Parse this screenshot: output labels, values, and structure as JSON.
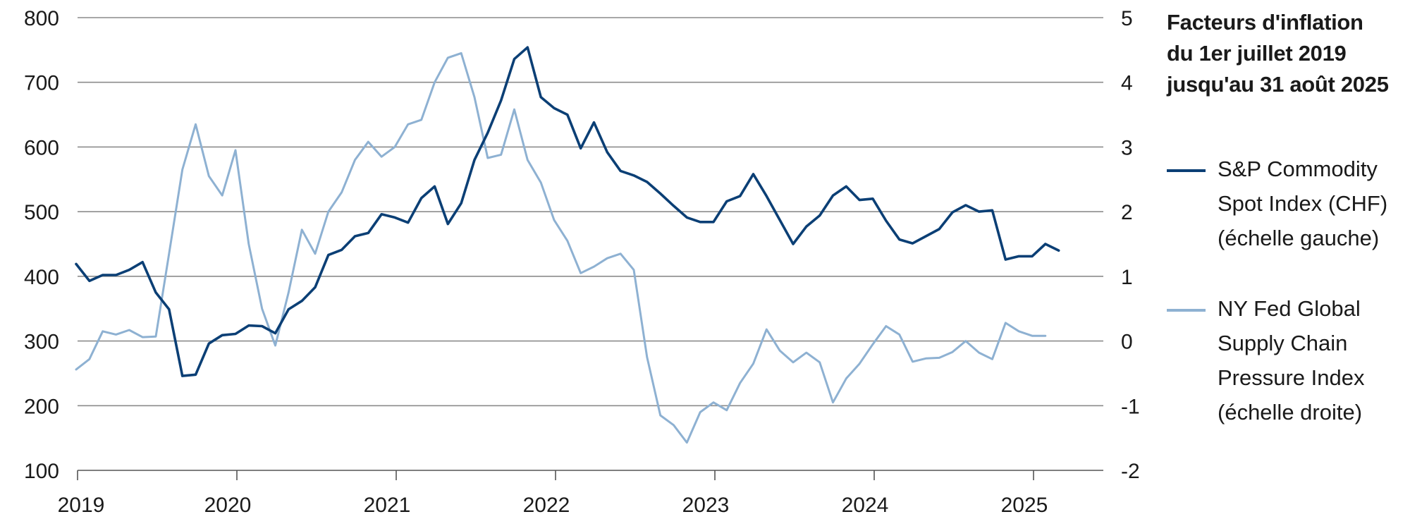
{
  "title_lines": [
    "Facteurs d'inflation",
    "du 1er juillet 2019",
    "jusqu'au 31 août 2025"
  ],
  "colors": {
    "sp": "#0b3f75",
    "ny": "#8eb1d2",
    "grid": "#8c8c8c",
    "axis": "#555555"
  },
  "legend": [
    {
      "lines": [
        "S&P Commodity",
        "Spot Index (CHF)",
        "(échelle gauche)"
      ]
    },
    {
      "lines": [
        "NY Fed Global",
        "Supply Chain",
        "Pressure Index",
        "(échelle droite)"
      ]
    }
  ],
  "chart_data": {
    "type": "line",
    "x_ticks": [
      "2019",
      "2020",
      "2021",
      "2022",
      "2023",
      "2024",
      "2025"
    ],
    "x_start": "2019-07",
    "left_axis": {
      "ylim": [
        100,
        800
      ],
      "ticks": [
        "100",
        "200",
        "300",
        "400",
        "500",
        "600",
        "700",
        "800"
      ]
    },
    "right_axis": {
      "ylim": [
        -2,
        5
      ],
      "ticks": [
        "-2",
        "-1",
        "0",
        "1",
        "2",
        "3",
        "4",
        "5"
      ]
    },
    "grid": true,
    "series": [
      {
        "name": "S&P Commodity Spot Index (CHF) (échelle gauche)",
        "axis": "left",
        "values": [
          419,
          393,
          402,
          402,
          410,
          422,
          375,
          349,
          246,
          248,
          296,
          309,
          311,
          324,
          323,
          312,
          349,
          362,
          383,
          433,
          441,
          462,
          467,
          496,
          491,
          483,
          521,
          539,
          481,
          513,
          580,
          622,
          672,
          736,
          754,
          677,
          660,
          650,
          598,
          638,
          592,
          563,
          556,
          546,
          528,
          509,
          491,
          484,
          484,
          516,
          524,
          558,
          524,
          487,
          450,
          477,
          494,
          525,
          539,
          518,
          520,
          486,
          457,
          451,
          462,
          473,
          499,
          510,
          500,
          502,
          426,
          431,
          431,
          450,
          440
        ],
        "x": [
          "2019-07",
          "2019-08",
          "2019-09",
          "2019-10",
          "2019-11",
          "2019-12",
          "2020-01",
          "2020-02",
          "2020-03",
          "2020-04",
          "2020-05",
          "2020-06",
          "2020-07",
          "2020-08",
          "2020-09",
          "2020-10",
          "2020-11",
          "2020-12",
          "2021-01",
          "2021-02",
          "2021-03",
          "2021-04",
          "2021-05",
          "2021-06",
          "2021-07",
          "2021-08",
          "2021-09",
          "2021-10",
          "2021-11",
          "2021-12",
          "2022-01",
          "2022-02",
          "2022-03",
          "2022-04",
          "2022-05",
          "2022-06",
          "2022-07",
          "2022-08",
          "2022-09",
          "2022-10",
          "2022-11",
          "2022-12",
          "2023-01",
          "2023-02",
          "2023-03",
          "2023-04",
          "2023-05",
          "2023-06",
          "2023-07",
          "2023-08",
          "2023-09",
          "2023-10",
          "2023-11",
          "2023-12",
          "2024-01",
          "2024-02",
          "2024-03",
          "2024-04",
          "2024-05",
          "2024-06",
          "2024-07",
          "2024-08",
          "2024-09",
          "2024-10",
          "2024-11",
          "2024-12",
          "2025-01",
          "2025-02",
          "2025-03",
          "2025-04",
          "2025-05",
          "2025-06",
          "2025-07",
          "2025-08",
          "2025-09"
        ]
      },
      {
        "name": "NY Fed Global Supply Chain Pressure Index (échelle droite)",
        "axis": "right",
        "values": [
          -0.44,
          -0.28,
          0.15,
          0.1,
          0.17,
          0.06,
          0.07,
          1.35,
          2.65,
          3.35,
          2.55,
          2.25,
          2.95,
          1.5,
          0.5,
          -0.07,
          0.75,
          1.72,
          1.35,
          2.0,
          2.3,
          2.8,
          3.08,
          2.85,
          3.0,
          3.35,
          3.42,
          4.0,
          4.38,
          4.45,
          3.77,
          2.83,
          2.88,
          3.58,
          2.8,
          2.45,
          1.87,
          1.55,
          1.05,
          1.15,
          1.28,
          1.35,
          1.1,
          -0.25,
          -1.15,
          -1.3,
          -1.57,
          -1.1,
          -0.95,
          -1.07,
          -0.65,
          -0.35,
          0.18,
          -0.15,
          -0.33,
          -0.18,
          -0.33,
          -0.95,
          -0.58,
          -0.35,
          -0.05,
          0.23,
          0.1,
          -0.32,
          -0.27,
          -0.26,
          -0.17,
          0.0,
          -0.18,
          -0.28,
          0.28,
          0.15,
          0.08,
          0.08
        ],
        "x": [
          "2019-07",
          "2019-08",
          "2019-09",
          "2019-10",
          "2019-11",
          "2019-12",
          "2020-01",
          "2020-02",
          "2020-03",
          "2020-04",
          "2020-05",
          "2020-06",
          "2020-07",
          "2020-08",
          "2020-09",
          "2020-10",
          "2020-11",
          "2020-12",
          "2021-01",
          "2021-02",
          "2021-03",
          "2021-04",
          "2021-05",
          "2021-06",
          "2021-07",
          "2021-08",
          "2021-09",
          "2021-10",
          "2021-11",
          "2021-12",
          "2022-01",
          "2022-02",
          "2022-03",
          "2022-04",
          "2022-05",
          "2022-06",
          "2022-07",
          "2022-08",
          "2022-09",
          "2022-10",
          "2022-11",
          "2022-12",
          "2023-01",
          "2023-02",
          "2023-03",
          "2023-04",
          "2023-05",
          "2023-06",
          "2023-07",
          "2023-08",
          "2023-09",
          "2023-10",
          "2023-11",
          "2023-12",
          "2024-01",
          "2024-02",
          "2024-03",
          "2024-04",
          "2024-05",
          "2024-06",
          "2024-07",
          "2024-08",
          "2024-09",
          "2024-10",
          "2024-11",
          "2024-12",
          "2025-01",
          "2025-02",
          "2025-03",
          "2025-04",
          "2025-05",
          "2025-06",
          "2025-07",
          "2025-08"
        ]
      }
    ]
  }
}
